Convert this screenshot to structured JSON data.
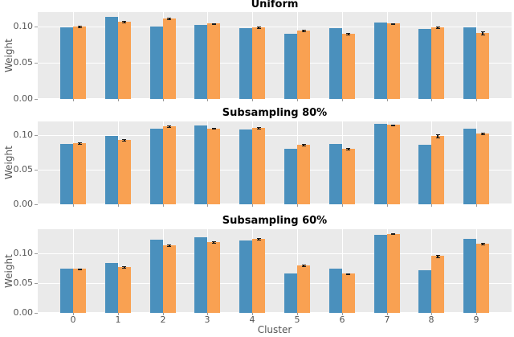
{
  "figure": {
    "xlabel": "Cluster",
    "ylabel": "Weight",
    "background": "#ffffff",
    "panel_background": "#eaeaea",
    "grid_color": "#ffffff",
    "tick_text_color": "#555555",
    "title_color": "#000000",
    "errorbar_color": "#1c1c1c",
    "series1_color": "#4a90bd",
    "series2_color": "#f9a152"
  },
  "chart_data": [
    {
      "type": "bar",
      "title": "Uniform",
      "xlabel": "",
      "ylabel": "Weight",
      "categories": [
        "0",
        "1",
        "2",
        "3",
        "4",
        "5",
        "6",
        "7",
        "8",
        "9"
      ],
      "x_tick_labels_shown": false,
      "ytick_values": [
        0,
        0.05,
        0.1
      ],
      "ytick_labels": [
        "0.00",
        "0.05",
        "0.10"
      ],
      "ylim": [
        0,
        0.12
      ],
      "grid": true,
      "legend": "none",
      "series": [
        {
          "name": "blue",
          "color": "#4a90bd",
          "values": [
            0.099,
            0.113,
            0.1,
            0.102,
            0.098,
            0.09,
            0.098,
            0.105,
            0.097,
            0.099
          ]
        },
        {
          "name": "orange",
          "color": "#f9a152",
          "values": [
            0.1,
            0.107,
            0.111,
            0.104,
            0.099,
            0.094,
            0.09,
            0.104,
            0.099,
            0.091
          ],
          "errors": [
            0.001,
            0.0012,
            0.001,
            0.0008,
            0.001,
            0.0012,
            0.001,
            0.0008,
            0.001,
            0.0018
          ]
        }
      ]
    },
    {
      "type": "bar",
      "title": "Subsampling 80%",
      "xlabel": "",
      "ylabel": "Weight",
      "categories": [
        "0",
        "1",
        "2",
        "3",
        "4",
        "5",
        "6",
        "7",
        "8",
        "9"
      ],
      "x_tick_labels_shown": false,
      "ytick_values": [
        0,
        0.05,
        0.1
      ],
      "ytick_labels": [
        "0.00",
        "0.05",
        "0.10"
      ],
      "ylim": [
        0,
        0.12
      ],
      "grid": true,
      "legend": "none",
      "series": [
        {
          "name": "blue",
          "color": "#4a90bd",
          "values": [
            0.087,
            0.099,
            0.11,
            0.114,
            0.108,
            0.08,
            0.087,
            0.116,
            0.086,
            0.11
          ]
        },
        {
          "name": "orange",
          "color": "#f9a152",
          "values": [
            0.088,
            0.093,
            0.113,
            0.11,
            0.111,
            0.086,
            0.08,
            0.115,
            0.099,
            0.103
          ],
          "errors": [
            0.0012,
            0.001,
            0.0012,
            0.001,
            0.0012,
            0.0012,
            0.001,
            0.0008,
            0.002,
            0.0012
          ]
        }
      ]
    },
    {
      "type": "bar",
      "title": "Subsampling 60%",
      "xlabel": "Cluster",
      "ylabel": "Weight",
      "categories": [
        "0",
        "1",
        "2",
        "3",
        "4",
        "5",
        "6",
        "7",
        "8",
        "9"
      ],
      "x_tick_labels_shown": true,
      "ytick_values": [
        0,
        0.05,
        0.1
      ],
      "ytick_labels": [
        "0.00",
        "0.05",
        "0.10"
      ],
      "ylim": [
        0,
        0.141
      ],
      "grid": true,
      "legend": "none",
      "series": [
        {
          "name": "blue",
          "color": "#4a90bd",
          "values": [
            0.074,
            0.084,
            0.124,
            0.128,
            0.122,
            0.067,
            0.074,
            0.132,
            0.072,
            0.125
          ]
        },
        {
          "name": "orange",
          "color": "#f9a152",
          "values": [
            0.074,
            0.077,
            0.114,
            0.119,
            0.125,
            0.08,
            0.066,
            0.133,
            0.096,
            0.117
          ],
          "errors": [
            0.001,
            0.0012,
            0.0012,
            0.0012,
            0.001,
            0.0015,
            0.001,
            0.0008,
            0.0022,
            0.0015
          ]
        }
      ]
    }
  ]
}
